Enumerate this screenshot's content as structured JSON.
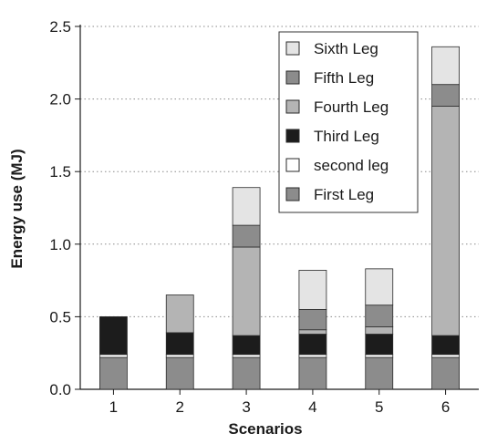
{
  "chart_data": {
    "type": "bar",
    "stacked": true,
    "title": "",
    "xlabel": "Scenarios",
    "ylabel": "Energy use (MJ)",
    "ylim": [
      0,
      2.5
    ],
    "yticks": [
      "0.0",
      "0.5",
      "1.0",
      "1.5",
      "2.0",
      "2.5"
    ],
    "grid": "horizontal dotted",
    "legend_position": "top-right",
    "categories": [
      "1",
      "2",
      "3",
      "4",
      "5",
      "6"
    ],
    "series": [
      {
        "name": "First Leg",
        "color": "#8c8c8c",
        "values": [
          0.22,
          0.22,
          0.22,
          0.22,
          0.22,
          0.22
        ]
      },
      {
        "name": "second leg",
        "color": "#ffffff",
        "values": [
          0.02,
          0.02,
          0.02,
          0.02,
          0.02,
          0.02
        ]
      },
      {
        "name": "Third Leg",
        "color": "#1c1c1c",
        "values": [
          0.26,
          0.15,
          0.13,
          0.14,
          0.14,
          0.13
        ]
      },
      {
        "name": "Fourth Leg",
        "color": "#b4b4b4",
        "values": [
          0.0,
          0.26,
          0.61,
          0.03,
          0.05,
          1.58
        ]
      },
      {
        "name": "Fifth Leg",
        "color": "#8c8c8c",
        "values": [
          0.0,
          0.0,
          0.15,
          0.14,
          0.15,
          0.15
        ]
      },
      {
        "name": "Sixth Leg",
        "color": "#e4e4e4",
        "values": [
          0.0,
          0.0,
          0.26,
          0.27,
          0.25,
          0.26
        ]
      }
    ]
  }
}
